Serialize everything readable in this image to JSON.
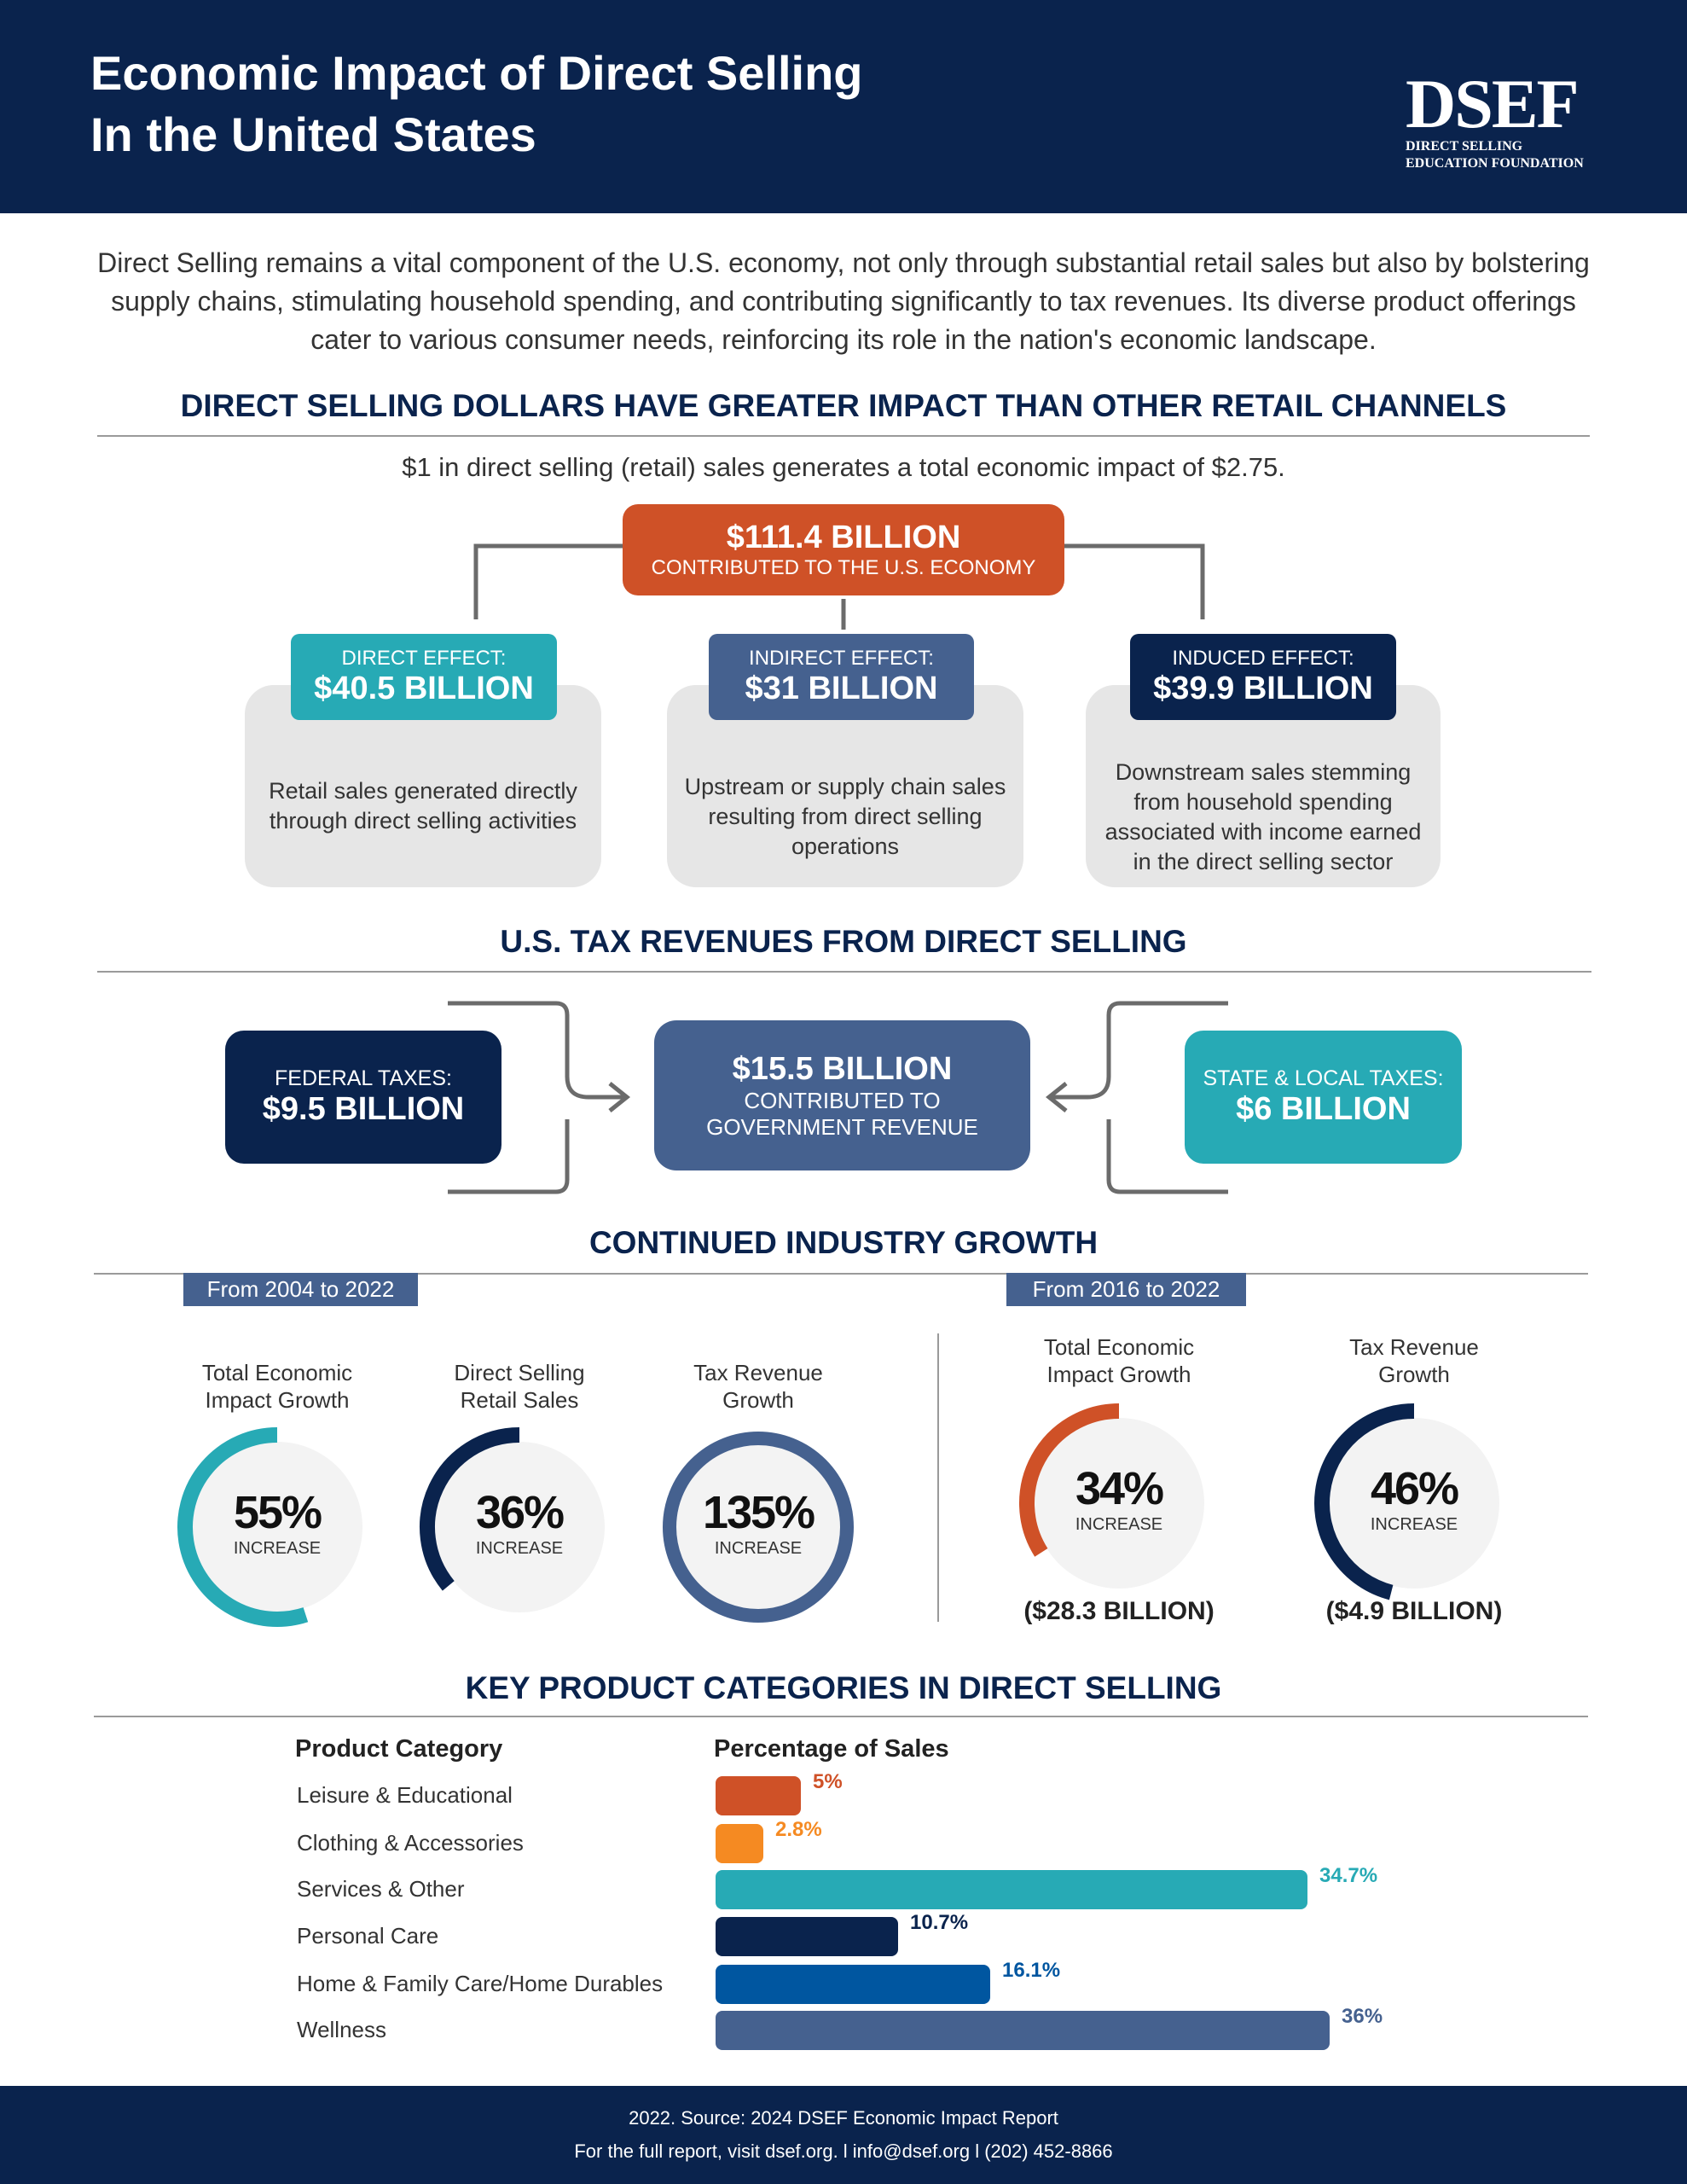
{
  "header": {
    "title_line1": "Economic Impact of  Direct Selling",
    "title_line2": "In the United States",
    "logo_mark": "DSEF",
    "logo_line1": "DIRECT SELLING",
    "logo_line2": "EDUCATION FOUNDATION"
  },
  "intro": "Direct Selling remains a vital component of the U.S. economy, not only through substantial retail sales but also by bolstering supply chains, stimulating household spending, and contributing significantly to tax revenues. Its diverse product offerings cater to various consumer needs, reinforcing its role in the nation's economic landscape.",
  "impact": {
    "heading": "DIRECT SELLING DOLLARS HAVE GREATER IMPACT THAN OTHER RETAIL CHANNELS",
    "subline": "$1 in direct selling (retail) sales generates a total economic impact of $2.75.",
    "total_value": "$111.4 BILLION",
    "total_label": "CONTRIBUTED TO THE U.S. ECONOMY",
    "effects": [
      {
        "label": "DIRECT EFFECT:",
        "value": "$40.5 BILLION",
        "desc": "Retail sales generated directly through direct selling activities",
        "color": "#27aab5"
      },
      {
        "label": "INDIRECT EFFECT:",
        "value": "$31 BILLION",
        "desc": "Upstream or supply chain sales resulting from direct selling operations",
        "color": "#45618f"
      },
      {
        "label": "INDUCED EFFECT:",
        "value": "$39.9 BILLION",
        "desc": "Downstream sales stemming from household spending associated with income earned in the direct selling sector",
        "color": "#0a234d"
      }
    ]
  },
  "tax": {
    "heading": "U.S. TAX REVENUES FROM DIRECT SELLING",
    "federal_label": "FEDERAL TAXES:",
    "federal_value": "$9.5 BILLION",
    "total_value": "$15.5 BILLION",
    "total_label1": "CONTRIBUTED TO",
    "total_label2": "GOVERNMENT REVENUE",
    "state_label": "STATE & LOCAL TAXES:",
    "state_value": "$6 BILLION"
  },
  "growth": {
    "heading": "CONTINUED INDUSTRY GROWTH",
    "period1": "From 2004 to 2022",
    "period2": "From 2016 to 2022",
    "increase_label": "INCREASE",
    "gauges": [
      {
        "label1": "Total Economic",
        "label2": "Impact Growth",
        "value": "55%",
        "percent": 55,
        "color": "#27aab5"
      },
      {
        "label1": "Direct Selling",
        "label2": "Retail Sales",
        "value": "36%",
        "percent": 36,
        "color": "#0a234d"
      },
      {
        "label1": "Tax Revenue",
        "label2": "Growth",
        "value": "135%",
        "percent": 135,
        "color": "#45618f"
      },
      {
        "label1": "Total Economic",
        "label2": "Impact Growth",
        "value": "34%",
        "percent": 34,
        "color": "#cf5127",
        "amount": "($28.3 BILLION)"
      },
      {
        "label1": "Tax Revenue",
        "label2": "Growth",
        "value": "46%",
        "percent": 46,
        "color": "#0a234d",
        "amount": "($4.9 BILLION)"
      }
    ]
  },
  "chart_data": {
    "type": "bar",
    "title": "KEY PRODUCT CATEGORIES IN DIRECT SELLING",
    "category_header": "Product Category",
    "value_header": "Percentage of Sales",
    "categories": [
      "Leisure & Educational",
      "Clothing & Accessories",
      "Services & Other",
      "Personal Care",
      "Home & Family Care/Home Durables",
      "Wellness"
    ],
    "values": [
      5,
      2.8,
      34.7,
      10.7,
      16.1,
      36
    ],
    "labels": [
      "5%",
      "2.8%",
      "34.7%",
      "10.7%",
      "16.1%",
      "36%"
    ],
    "colors": [
      "#cf5127",
      "#f58a22",
      "#27aab5",
      "#0a234d",
      "#0056a0",
      "#45618f"
    ]
  },
  "footer": {
    "line1": "2022. Source: 2024 DSEF Economic Impact Report",
    "line2": "For the full report, visit dsef.org. l info@dsef.org l (202) 452-8866"
  }
}
